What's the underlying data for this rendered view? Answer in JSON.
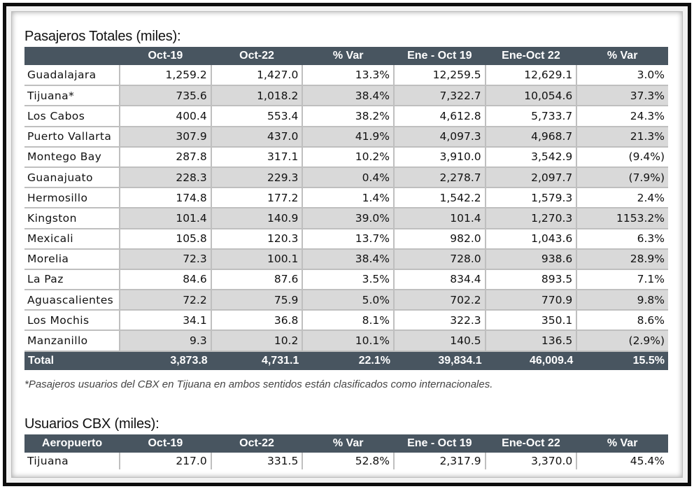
{
  "section1": {
    "title": "Pasajeros Totales (miles):",
    "headers": [
      "",
      "Oct-19",
      "Oct-22",
      "% Var",
      "Ene - Oct  19",
      "Ene-Oct 22",
      "% Var"
    ],
    "rows": [
      {
        "name": "Guadalajara",
        "values": [
          "1,259.2",
          "1,427.0",
          "13.3%",
          "12,259.5",
          "12,629.1",
          "3.0%"
        ]
      },
      {
        "name": "Tijuana*",
        "values": [
          "735.6",
          "1,018.2",
          "38.4%",
          "7,322.7",
          "10,054.6",
          "37.3%"
        ]
      },
      {
        "name": "Los Cabos",
        "values": [
          "400.4",
          "553.4",
          "38.2%",
          "4,612.8",
          "5,733.7",
          "24.3%"
        ]
      },
      {
        "name": "Puerto Vallarta",
        "values": [
          "307.9",
          "437.0",
          "41.9%",
          "4,097.3",
          "4,968.7",
          "21.3%"
        ]
      },
      {
        "name": "Montego Bay",
        "values": [
          "287.8",
          "317.1",
          "10.2%",
          "3,910.0",
          "3,542.9",
          "(9.4%)"
        ]
      },
      {
        "name": "Guanajuato",
        "values": [
          "228.3",
          "229.3",
          "0.4%",
          "2,278.7",
          "2,097.7",
          "(7.9%)"
        ]
      },
      {
        "name": "Hermosillo",
        "values": [
          "174.8",
          "177.2",
          "1.4%",
          "1,542.2",
          "1,579.3",
          "2.4%"
        ]
      },
      {
        "name": "Kingston",
        "values": [
          "101.4",
          "140.9",
          "39.0%",
          "101.4",
          "1,270.3",
          "1153.2%"
        ]
      },
      {
        "name": "Mexicali",
        "values": [
          "105.8",
          "120.3",
          "13.7%",
          "982.0",
          "1,043.6",
          "6.3%"
        ]
      },
      {
        "name": "Morelia",
        "values": [
          "72.3",
          "100.1",
          "38.4%",
          "728.0",
          "938.6",
          "28.9%"
        ]
      },
      {
        "name": "La Paz",
        "values": [
          "84.6",
          "87.6",
          "3.5%",
          "834.4",
          "893.5",
          "7.1%"
        ]
      },
      {
        "name": "Aguascalientes",
        "values": [
          "72.2",
          "75.9",
          "5.0%",
          "702.2",
          "770.9",
          "9.8%"
        ]
      },
      {
        "name": "Los Mochis",
        "values": [
          "34.1",
          "36.8",
          "8.1%",
          "322.3",
          "350.1",
          "8.6%"
        ]
      },
      {
        "name": "Manzanillo",
        "values": [
          "9.3",
          "10.2",
          "10.1%",
          "140.5",
          "136.5",
          "(2.9%)"
        ]
      }
    ],
    "total": {
      "name": "Total",
      "values": [
        "3,873.8",
        "4,731.1",
        "22.1%",
        "39,834.1",
        "46,009.4",
        "15.5%"
      ]
    },
    "footnote": "*Pasajeros usuarios del CBX en Tijuana en ambos sentidos están clasificados como internacionales."
  },
  "section2": {
    "title": "Usuarios CBX (miles):",
    "headers": [
      "Aeropuerto",
      "Oct-19",
      "Oct-22",
      "% Var",
      "Ene - Oct  19",
      "Ene-Oct 22",
      "% Var"
    ],
    "rows": [
      {
        "name": "Tijuana",
        "values": [
          "217.0",
          "331.5",
          "52.8%",
          "2,317.9",
          "3,370.0",
          "45.4%"
        ]
      }
    ]
  },
  "colors": {
    "header_bg": "#485560",
    "header_text": "#ffffff",
    "stripe": "#d9d9d9",
    "frame": "#0d0d0d"
  }
}
